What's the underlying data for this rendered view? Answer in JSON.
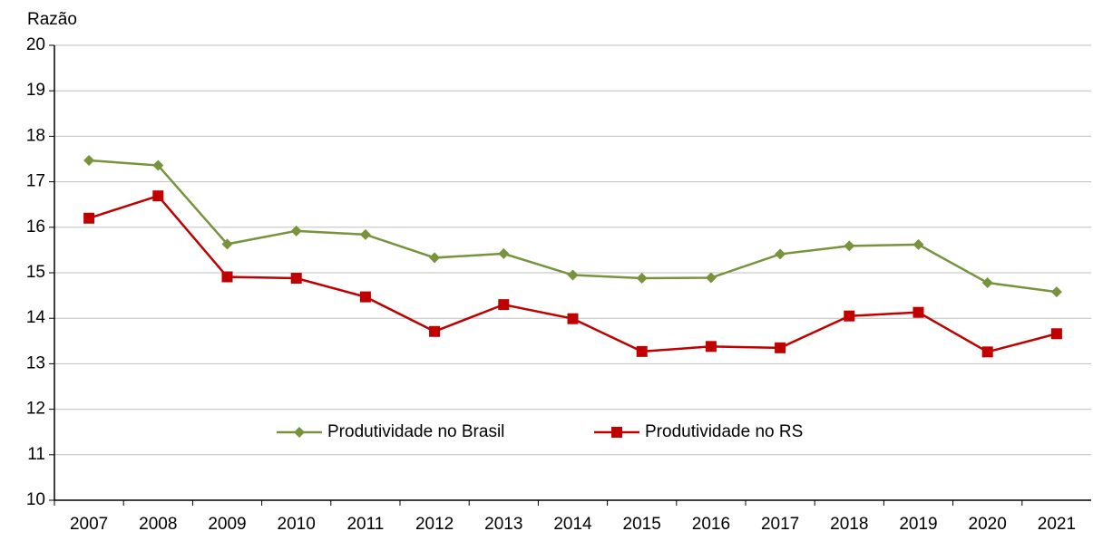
{
  "chart_data": {
    "type": "line",
    "y_label": "Razão",
    "categories": [
      "2007",
      "2008",
      "2009",
      "2010",
      "2011",
      "2012",
      "2013",
      "2014",
      "2015",
      "2016",
      "2017",
      "2018",
      "2019",
      "2020",
      "2021"
    ],
    "series": [
      {
        "name": "Produtividade no Brasil",
        "color": "#77933c",
        "marker": "diamond",
        "values": [
          17.47,
          17.36,
          15.63,
          15.92,
          15.84,
          15.33,
          15.42,
          14.95,
          14.88,
          14.89,
          15.41,
          15.59,
          15.62,
          14.78,
          14.58
        ]
      },
      {
        "name": "Produtividade no RS",
        "color": "#c00000",
        "marker": "square",
        "values": [
          16.2,
          16.69,
          14.91,
          14.88,
          14.47,
          13.71,
          14.3,
          13.99,
          13.27,
          13.38,
          13.35,
          14.05,
          14.13,
          13.26,
          13.66
        ]
      }
    ],
    "ylim": [
      10,
      20
    ],
    "yticks": [
      10,
      11,
      12,
      13,
      14,
      15,
      16,
      17,
      18,
      19,
      20
    ],
    "grid": true,
    "legend": "lower center"
  }
}
